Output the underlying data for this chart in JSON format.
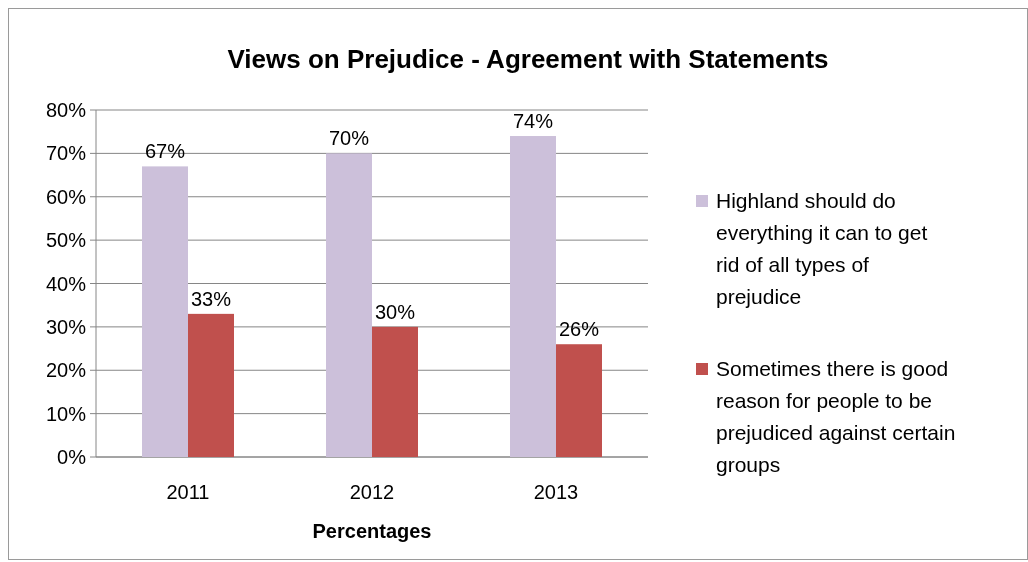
{
  "chart_data": {
    "type": "bar",
    "title": "Views on Prejudice - Agreement with Statements",
    "xlabel": "Percentages",
    "categories": [
      "2011",
      "2012",
      "2013"
    ],
    "series": [
      {
        "name": "Highland should do everything it can to get rid of all types of prejudice",
        "color": "#ccc0da",
        "values": [
          67,
          70,
          74
        ],
        "value_labels": [
          "67%",
          "70%",
          "74%"
        ]
      },
      {
        "name": "Sometimes there is good reason for people to be prejudiced against certain groups",
        "color": "#c0504d",
        "values": [
          33,
          30,
          26
        ],
        "value_labels": [
          "33%",
          "30%",
          "26%"
        ]
      }
    ],
    "ylim": [
      0,
      80
    ],
    "yticks": [
      {
        "value": 0,
        "label": "0%"
      },
      {
        "value": 10,
        "label": "10%"
      },
      {
        "value": 20,
        "label": "20%"
      },
      {
        "value": 30,
        "label": "30%"
      },
      {
        "value": 40,
        "label": "40%"
      },
      {
        "value": 50,
        "label": "50%"
      },
      {
        "value": 60,
        "label": "60%"
      },
      {
        "value": 70,
        "label": "70%"
      },
      {
        "value": 80,
        "label": "80%"
      }
    ],
    "grid": "y",
    "legend": "right"
  }
}
